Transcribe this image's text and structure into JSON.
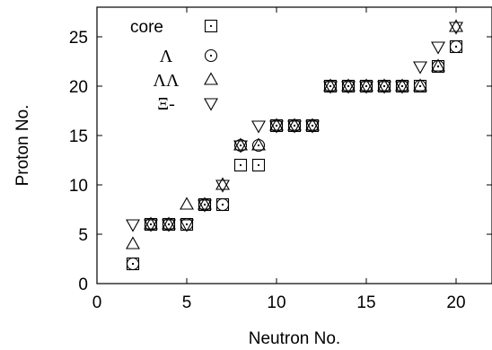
{
  "chart_data": {
    "type": "scatter",
    "title": "",
    "xlabel": "Neutron No.",
    "ylabel": "Proton No.",
    "xlim": [
      0,
      22
    ],
    "ylim": [
      0,
      28
    ],
    "xticks": [
      0,
      5,
      10,
      15,
      20
    ],
    "yticks": [
      0,
      5,
      10,
      15,
      20,
      25
    ],
    "grid": false,
    "legend_position": "top-left",
    "series": [
      {
        "name": "core",
        "marker": "square",
        "points": [
          [
            2,
            2
          ],
          [
            3,
            6
          ],
          [
            4,
            6
          ],
          [
            5,
            6
          ],
          [
            6,
            8
          ],
          [
            7,
            8
          ],
          [
            8,
            12
          ],
          [
            9,
            12
          ],
          [
            10,
            16
          ],
          [
            11,
            16
          ],
          [
            12,
            16
          ],
          [
            13,
            20
          ],
          [
            14,
            20
          ],
          [
            15,
            20
          ],
          [
            16,
            20
          ],
          [
            17,
            20
          ],
          [
            18,
            20
          ],
          [
            19,
            22
          ],
          [
            20,
            24
          ]
        ]
      },
      {
        "name": "Λ",
        "marker": "circle-dot",
        "points": [
          [
            2,
            2
          ],
          [
            3,
            6
          ],
          [
            4,
            6
          ],
          [
            5,
            6
          ],
          [
            6,
            8
          ],
          [
            7,
            8
          ],
          [
            8,
            14
          ],
          [
            9,
            14
          ],
          [
            10,
            16
          ],
          [
            11,
            16
          ],
          [
            12,
            16
          ],
          [
            13,
            20
          ],
          [
            14,
            20
          ],
          [
            15,
            20
          ],
          [
            16,
            20
          ],
          [
            17,
            20
          ],
          [
            18,
            20
          ],
          [
            19,
            22
          ],
          [
            20,
            24
          ]
        ]
      },
      {
        "name": "ΛΛ",
        "marker": "triangle-up",
        "points": [
          [
            2,
            4
          ],
          [
            3,
            6
          ],
          [
            4,
            6
          ],
          [
            5,
            8
          ],
          [
            6,
            8
          ],
          [
            7,
            10
          ],
          [
            8,
            14
          ],
          [
            9,
            14
          ],
          [
            10,
            16
          ],
          [
            11,
            16
          ],
          [
            12,
            16
          ],
          [
            13,
            20
          ],
          [
            14,
            20
          ],
          [
            15,
            20
          ],
          [
            16,
            20
          ],
          [
            17,
            20
          ],
          [
            18,
            20
          ],
          [
            19,
            22
          ],
          [
            20,
            26
          ]
        ]
      },
      {
        "name": "Ξ-",
        "marker": "triangle-down",
        "points": [
          [
            2,
            6
          ],
          [
            3,
            6
          ],
          [
            4,
            6
          ],
          [
            5,
            6
          ],
          [
            6,
            8
          ],
          [
            7,
            10
          ],
          [
            8,
            14
          ],
          [
            9,
            16
          ],
          [
            10,
            16
          ],
          [
            11,
            16
          ],
          [
            12,
            16
          ],
          [
            13,
            20
          ],
          [
            14,
            20
          ],
          [
            15,
            20
          ],
          [
            16,
            20
          ],
          [
            17,
            20
          ],
          [
            18,
            22
          ],
          [
            19,
            24
          ],
          [
            20,
            26
          ]
        ]
      }
    ]
  }
}
